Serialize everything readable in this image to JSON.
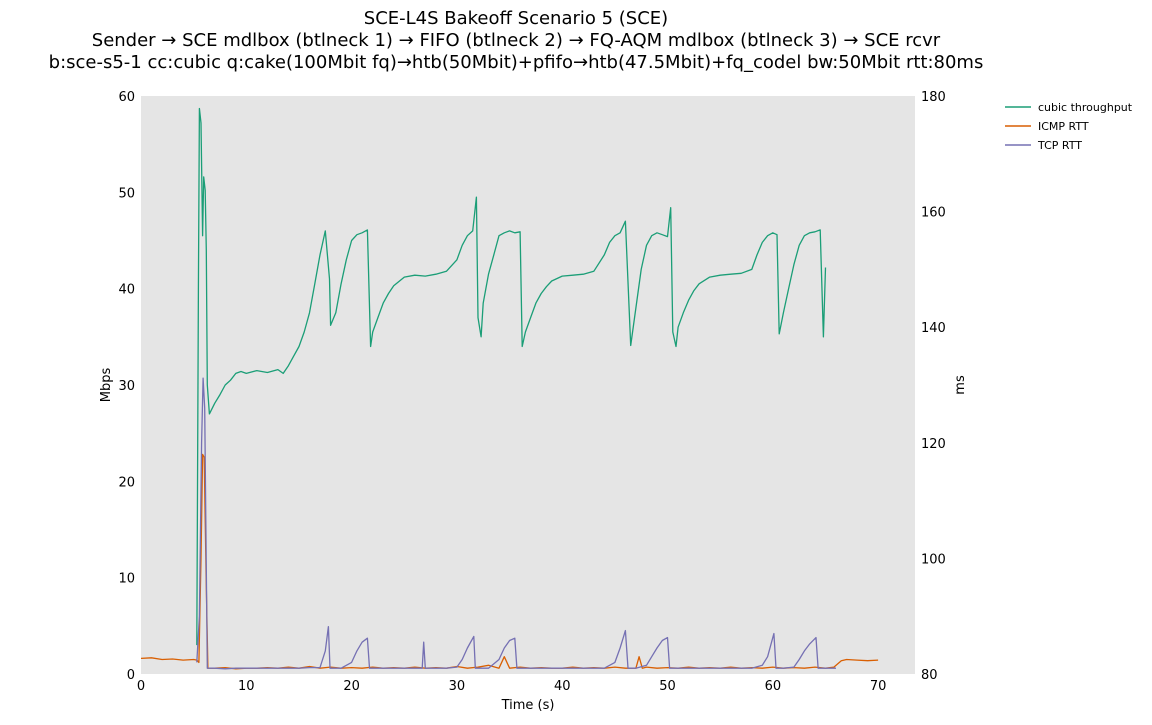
{
  "chart_data": {
    "type": "line",
    "title": [
      "SCE-L4S Bakeoff Scenario 5 (SCE)",
      "Sender → SCE mdlbox (btlneck 1) → FIFO (btlneck 2) → FQ-AQM mdlbox (btlneck 3) → SCE rcvr",
      "b:sce-s5-1 cc:cubic q:cake(100Mbit fq)→htb(50Mbit)+pfifo→htb(47.5Mbit)+fq_codel bw:50Mbit rtt:80ms"
    ],
    "xlabel": "Time (s)",
    "ylabel_left": "Mbps",
    "ylabel_right": "ms",
    "xlim": [
      0,
      73.5
    ],
    "ylim_left": [
      0,
      60
    ],
    "ylim_right": [
      80,
      180
    ],
    "xticks": [
      0,
      10,
      20,
      30,
      40,
      50,
      60,
      70
    ],
    "yticks_left": [
      0,
      10,
      20,
      30,
      40,
      50,
      60
    ],
    "yticks_right": [
      80,
      100,
      120,
      140,
      160,
      180
    ],
    "grid": false,
    "background": "#e5e5e5",
    "legend_position": "outside-top-right",
    "series": [
      {
        "name": "cubic throughput",
        "axis": "left",
        "color": "#1b9e77",
        "points": [
          [
            5.3,
            3.0
          ],
          [
            5.45,
            40.0
          ],
          [
            5.55,
            58.7
          ],
          [
            5.7,
            57.2
          ],
          [
            5.85,
            45.5
          ],
          [
            5.95,
            51.6
          ],
          [
            6.1,
            50.2
          ],
          [
            6.2,
            44.0
          ],
          [
            6.3,
            30.0
          ],
          [
            6.5,
            27.0
          ],
          [
            7.0,
            28.1
          ],
          [
            7.5,
            29.0
          ],
          [
            8.0,
            30.0
          ],
          [
            8.5,
            30.5
          ],
          [
            9.0,
            31.2
          ],
          [
            9.5,
            31.4
          ],
          [
            10.0,
            31.2
          ],
          [
            11.0,
            31.5
          ],
          [
            12.0,
            31.3
          ],
          [
            13.0,
            31.6
          ],
          [
            13.5,
            31.2
          ],
          [
            14.0,
            32.0
          ],
          [
            14.5,
            33.0
          ],
          [
            15.0,
            34.0
          ],
          [
            15.5,
            35.5
          ],
          [
            16.0,
            37.5
          ],
          [
            16.5,
            40.5
          ],
          [
            17.0,
            43.5
          ],
          [
            17.5,
            46.0
          ],
          [
            17.9,
            41.0
          ],
          [
            18.0,
            36.2
          ],
          [
            18.5,
            37.5
          ],
          [
            19.0,
            40.5
          ],
          [
            19.5,
            43.0
          ],
          [
            20.0,
            45.0
          ],
          [
            20.5,
            45.6
          ],
          [
            21.0,
            45.8
          ],
          [
            21.5,
            46.1
          ],
          [
            21.8,
            34.0
          ],
          [
            22.0,
            35.5
          ],
          [
            22.5,
            37.0
          ],
          [
            23.0,
            38.5
          ],
          [
            23.5,
            39.5
          ],
          [
            24.0,
            40.3
          ],
          [
            25.0,
            41.2
          ],
          [
            26.0,
            41.4
          ],
          [
            27.0,
            41.3
          ],
          [
            28.0,
            41.5
          ],
          [
            29.0,
            41.8
          ],
          [
            30.0,
            43.0
          ],
          [
            30.5,
            44.5
          ],
          [
            31.0,
            45.5
          ],
          [
            31.5,
            46.0
          ],
          [
            31.85,
            49.5
          ],
          [
            32.0,
            37.0
          ],
          [
            32.3,
            35.0
          ],
          [
            32.5,
            38.5
          ],
          [
            33.0,
            41.5
          ],
          [
            33.5,
            43.5
          ],
          [
            34.0,
            45.5
          ],
          [
            34.5,
            45.8
          ],
          [
            35.0,
            46.0
          ],
          [
            35.5,
            45.8
          ],
          [
            36.0,
            45.9
          ],
          [
            36.2,
            34.0
          ],
          [
            36.5,
            35.5
          ],
          [
            37.0,
            37.0
          ],
          [
            37.5,
            38.5
          ],
          [
            38.0,
            39.5
          ],
          [
            38.5,
            40.2
          ],
          [
            39.0,
            40.8
          ],
          [
            40.0,
            41.3
          ],
          [
            41.0,
            41.4
          ],
          [
            42.0,
            41.5
          ],
          [
            43.0,
            41.8
          ],
          [
            44.0,
            43.5
          ],
          [
            44.5,
            44.8
          ],
          [
            45.0,
            45.5
          ],
          [
            45.5,
            45.8
          ],
          [
            46.0,
            47.0
          ],
          [
            46.5,
            34.1
          ],
          [
            47.0,
            38.0
          ],
          [
            47.5,
            42.0
          ],
          [
            48.0,
            44.5
          ],
          [
            48.5,
            45.5
          ],
          [
            49.0,
            45.8
          ],
          [
            49.5,
            45.6
          ],
          [
            50.0,
            45.4
          ],
          [
            50.3,
            48.4
          ],
          [
            50.5,
            35.5
          ],
          [
            50.8,
            34.0
          ],
          [
            51.0,
            36.0
          ],
          [
            51.5,
            37.5
          ],
          [
            52.0,
            38.8
          ],
          [
            52.5,
            39.8
          ],
          [
            53.0,
            40.5
          ],
          [
            54.0,
            41.2
          ],
          [
            55.0,
            41.4
          ],
          [
            56.0,
            41.5
          ],
          [
            57.0,
            41.6
          ],
          [
            58.0,
            42.0
          ],
          [
            58.5,
            43.5
          ],
          [
            59.0,
            44.8
          ],
          [
            59.5,
            45.5
          ],
          [
            60.0,
            45.8
          ],
          [
            60.4,
            45.6
          ],
          [
            60.6,
            35.3
          ],
          [
            61.0,
            37.5
          ],
          [
            61.5,
            40.0
          ],
          [
            62.0,
            42.5
          ],
          [
            62.5,
            44.5
          ],
          [
            63.0,
            45.5
          ],
          [
            63.5,
            45.8
          ],
          [
            64.0,
            45.9
          ],
          [
            64.5,
            46.1
          ],
          [
            64.8,
            35.0
          ],
          [
            65.0,
            42.2
          ]
        ]
      },
      {
        "name": "ICMP RTT",
        "axis": "right",
        "color": "#d95f02",
        "points": [
          [
            0,
            82.7
          ],
          [
            1.0,
            82.8
          ],
          [
            2.0,
            82.5
          ],
          [
            3.0,
            82.6
          ],
          [
            4.0,
            82.4
          ],
          [
            5.0,
            82.5
          ],
          [
            5.3,
            82.4
          ],
          [
            5.5,
            82.0
          ],
          [
            5.7,
            100.0
          ],
          [
            5.85,
            118.0
          ],
          [
            6.0,
            117.5
          ],
          [
            6.2,
            95.0
          ],
          [
            6.35,
            81.0
          ],
          [
            7,
            81.0
          ],
          [
            8,
            81.1
          ],
          [
            9,
            80.9
          ],
          [
            10,
            81.0
          ],
          [
            11,
            81.0
          ],
          [
            12,
            81.1
          ],
          [
            13,
            81.0
          ],
          [
            14,
            81.2
          ],
          [
            15,
            81.0
          ],
          [
            16,
            81.3
          ],
          [
            17,
            81.0
          ],
          [
            18,
            81.2
          ],
          [
            19,
            81.0
          ],
          [
            20,
            81.1
          ],
          [
            21,
            81.0
          ],
          [
            22,
            81.2
          ],
          [
            23,
            81.0
          ],
          [
            24,
            81.1
          ],
          [
            25,
            81.0
          ],
          [
            26,
            81.2
          ],
          [
            27,
            81.0
          ],
          [
            28,
            81.1
          ],
          [
            29,
            81.0
          ],
          [
            30,
            81.3
          ],
          [
            31,
            81.0
          ],
          [
            32,
            81.2
          ],
          [
            33,
            81.5
          ],
          [
            34,
            81.0
          ],
          [
            34.5,
            83.0
          ],
          [
            35,
            81.0
          ],
          [
            36,
            81.2
          ],
          [
            37,
            81.0
          ],
          [
            38,
            81.1
          ],
          [
            39,
            81.0
          ],
          [
            40,
            81.0
          ],
          [
            41,
            81.2
          ],
          [
            42,
            81.0
          ],
          [
            43,
            81.1
          ],
          [
            44,
            81.0
          ],
          [
            45,
            81.2
          ],
          [
            46,
            81.0
          ],
          [
            47,
            81.0
          ],
          [
            47.3,
            83.0
          ],
          [
            47.6,
            81.0
          ],
          [
            48,
            81.2
          ],
          [
            49,
            81.0
          ],
          [
            50,
            81.1
          ],
          [
            51,
            81.0
          ],
          [
            52,
            81.2
          ],
          [
            53,
            81.0
          ],
          [
            54,
            81.1
          ],
          [
            55,
            81.0
          ],
          [
            56,
            81.2
          ],
          [
            57,
            81.0
          ],
          [
            58,
            81.1
          ],
          [
            59,
            81.0
          ],
          [
            60,
            81.2
          ],
          [
            61,
            81.0
          ],
          [
            62,
            81.1
          ],
          [
            63,
            81.0
          ],
          [
            64,
            81.2
          ],
          [
            65,
            81.0
          ],
          [
            65.8,
            81.2
          ],
          [
            66.5,
            82.3
          ],
          [
            67,
            82.5
          ],
          [
            68,
            82.4
          ],
          [
            69,
            82.3
          ],
          [
            70,
            82.4
          ]
        ]
      },
      {
        "name": "TCP RTT",
        "axis": "right",
        "color": "#7570b3",
        "points": [
          [
            5.3,
            82.0
          ],
          [
            5.55,
            90.0
          ],
          [
            5.75,
            120.0
          ],
          [
            5.9,
            131.2
          ],
          [
            6.05,
            126.0
          ],
          [
            6.3,
            81.0
          ],
          [
            7,
            81.0
          ],
          [
            8,
            80.9
          ],
          [
            9,
            81.0
          ],
          [
            10,
            81.0
          ],
          [
            11,
            81.0
          ],
          [
            12,
            81.0
          ],
          [
            13,
            81.0
          ],
          [
            14,
            81.0
          ],
          [
            15,
            81.0
          ],
          [
            16,
            81.1
          ],
          [
            17,
            81.1
          ],
          [
            17.5,
            84.0
          ],
          [
            17.8,
            88.2
          ],
          [
            17.95,
            81.0
          ],
          [
            19,
            81.0
          ],
          [
            20,
            82.0
          ],
          [
            20.5,
            84.0
          ],
          [
            21,
            85.5
          ],
          [
            21.5,
            86.2
          ],
          [
            21.7,
            81.0
          ],
          [
            23,
            81.0
          ],
          [
            24,
            81.0
          ],
          [
            25,
            81.0
          ],
          [
            26,
            81.0
          ],
          [
            26.7,
            81.0
          ],
          [
            26.85,
            85.5
          ],
          [
            27.0,
            81.0
          ],
          [
            28,
            81.0
          ],
          [
            29,
            81.0
          ],
          [
            30,
            81.2
          ],
          [
            30.5,
            82.5
          ],
          [
            31,
            84.5
          ],
          [
            31.6,
            86.5
          ],
          [
            31.75,
            81.0
          ],
          [
            33,
            81.0
          ],
          [
            34,
            82.5
          ],
          [
            34.5,
            84.5
          ],
          [
            35,
            85.8
          ],
          [
            35.5,
            86.2
          ],
          [
            35.7,
            81.0
          ],
          [
            37,
            81.0
          ],
          [
            38,
            81.0
          ],
          [
            39,
            81.0
          ],
          [
            40,
            81.0
          ],
          [
            41,
            81.0
          ],
          [
            42,
            81.0
          ],
          [
            43,
            81.0
          ],
          [
            44,
            81.0
          ],
          [
            45,
            82.0
          ],
          [
            45.5,
            84.5
          ],
          [
            46.0,
            87.5
          ],
          [
            46.25,
            81.0
          ],
          [
            47,
            81.0
          ],
          [
            48,
            81.5
          ],
          [
            48.5,
            83.0
          ],
          [
            49,
            84.5
          ],
          [
            49.5,
            85.8
          ],
          [
            50.0,
            86.3
          ],
          [
            50.2,
            81.0
          ],
          [
            51,
            81.0
          ],
          [
            52,
            81.0
          ],
          [
            53,
            81.0
          ],
          [
            54,
            81.0
          ],
          [
            55,
            81.0
          ],
          [
            56,
            81.0
          ],
          [
            57,
            81.0
          ],
          [
            58,
            81.0
          ],
          [
            59,
            81.5
          ],
          [
            59.5,
            83.0
          ],
          [
            60.1,
            87.0
          ],
          [
            60.3,
            81.0
          ],
          [
            61,
            81.0
          ],
          [
            62,
            81.2
          ],
          [
            62.5,
            82.5
          ],
          [
            63,
            84.0
          ],
          [
            63.5,
            85.2
          ],
          [
            64.1,
            86.3
          ],
          [
            64.3,
            81.0
          ],
          [
            65,
            81.0
          ],
          [
            66,
            81.0
          ]
        ]
      }
    ]
  }
}
